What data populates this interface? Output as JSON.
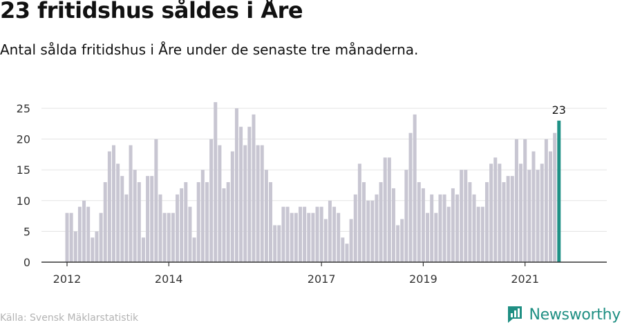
{
  "chart_data": {
    "type": "bar",
    "title": "23 fritidshus såldes i Åre",
    "subtitle": "Antal sålda fritidshus i Åre under de senaste tre månaderna.",
    "source": "Källa: Svensk Mäklarstatistik",
    "x_start": "2012-01",
    "x_ticks": [
      "2012",
      "2014",
      "2017",
      "2019",
      "2021"
    ],
    "y_ticks": [
      0,
      5,
      10,
      15,
      20,
      25
    ],
    "ylim": [
      0,
      26
    ],
    "grid": true,
    "values": [
      8,
      8,
      5,
      9,
      10,
      9,
      4,
      5,
      8,
      13,
      18,
      19,
      16,
      14,
      11,
      19,
      15,
      13,
      4,
      14,
      14,
      20,
      11,
      8,
      8,
      8,
      11,
      12,
      13,
      9,
      4,
      13,
      15,
      13,
      20,
      26,
      19,
      12,
      13,
      18,
      25,
      22,
      19,
      22,
      24,
      19,
      19,
      15,
      13,
      6,
      6,
      9,
      9,
      8,
      8,
      9,
      9,
      8,
      8,
      9,
      9,
      7,
      10,
      9,
      8,
      4,
      3,
      7,
      11,
      16,
      13,
      10,
      10,
      11,
      13,
      17,
      17,
      12,
      6,
      7,
      15,
      21,
      24,
      13,
      12,
      8,
      11,
      8,
      11,
      11,
      9,
      12,
      11,
      15,
      15,
      13,
      11,
      9,
      9,
      13,
      16,
      17,
      16,
      13,
      14,
      14,
      20,
      16,
      20,
      15,
      18,
      15,
      16,
      20,
      18,
      21,
      23
    ],
    "highlight_label": "23",
    "colors": {
      "bar": "#c8c6d2",
      "highlight": "#1f9186",
      "grid": "#e3e3e3",
      "axis": "#333333"
    }
  },
  "brand": {
    "name": "Newsworthy",
    "icon": "bar-chart-logo-icon"
  }
}
